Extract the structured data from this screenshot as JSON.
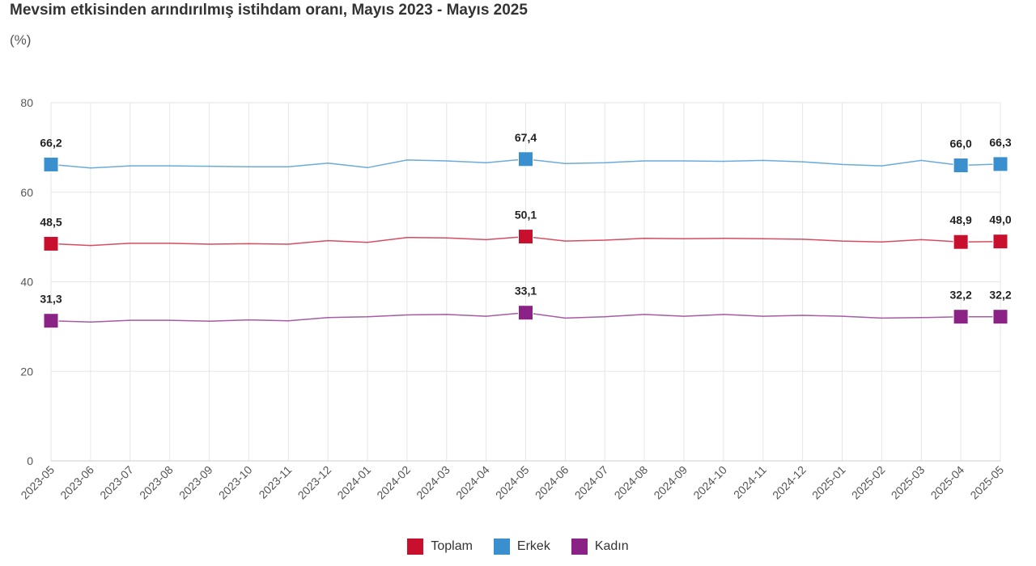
{
  "chart_data": {
    "type": "line",
    "title": "Mevsim etkisinden arındırılmış istihdam oranı, Mayıs 2023 - Mayıs 2025",
    "subtitle": "(%)",
    "xlabel": "",
    "ylabel": "",
    "ylim": [
      0,
      80
    ],
    "yticks": [
      0,
      20,
      40,
      60,
      80
    ],
    "grid": true,
    "legend_position": "bottom",
    "categories": [
      "2023-05",
      "2023-06",
      "2023-07",
      "2023-08",
      "2023-09",
      "2023-10",
      "2023-11",
      "2023-12",
      "2024-01",
      "2024-02",
      "2024-03",
      "2024-04",
      "2024-05",
      "2024-06",
      "2024-07",
      "2024-08",
      "2024-09",
      "2024-10",
      "2024-11",
      "2024-12",
      "2025-01",
      "2025-02",
      "2025-03",
      "2025-04",
      "2025-05"
    ],
    "series": [
      {
        "name": "Toplam",
        "color": "#c8102e",
        "values": [
          48.5,
          48.1,
          48.6,
          48.6,
          48.4,
          48.5,
          48.4,
          49.2,
          48.8,
          49.9,
          49.8,
          49.4,
          50.1,
          49.1,
          49.3,
          49.7,
          49.6,
          49.7,
          49.6,
          49.5,
          49.1,
          48.9,
          49.4,
          48.9,
          49.0
        ],
        "labels": {
          "0": "48,5",
          "12": "50,1",
          "23": "48,9",
          "24": "49,0"
        }
      },
      {
        "name": "Erkek",
        "color": "#3a8fce",
        "values": [
          66.2,
          65.4,
          65.9,
          65.9,
          65.8,
          65.7,
          65.7,
          66.5,
          65.5,
          67.2,
          67.0,
          66.6,
          67.4,
          66.4,
          66.6,
          67.0,
          67.0,
          66.9,
          67.1,
          66.8,
          66.2,
          65.9,
          67.1,
          66.0,
          66.3
        ],
        "labels": {
          "0": "66,2",
          "12": "67,4",
          "23": "66,0",
          "24": "66,3"
        }
      },
      {
        "name": "Kadın",
        "color": "#8b2386",
        "values": [
          31.3,
          31.0,
          31.4,
          31.4,
          31.2,
          31.5,
          31.3,
          32.0,
          32.2,
          32.6,
          32.7,
          32.3,
          33.1,
          31.9,
          32.2,
          32.7,
          32.3,
          32.7,
          32.3,
          32.5,
          32.3,
          31.9,
          32.0,
          32.2,
          32.2
        ],
        "labels": {
          "0": "31,3",
          "12": "33,1",
          "23": "32,2",
          "24": "32,2"
        }
      }
    ]
  }
}
